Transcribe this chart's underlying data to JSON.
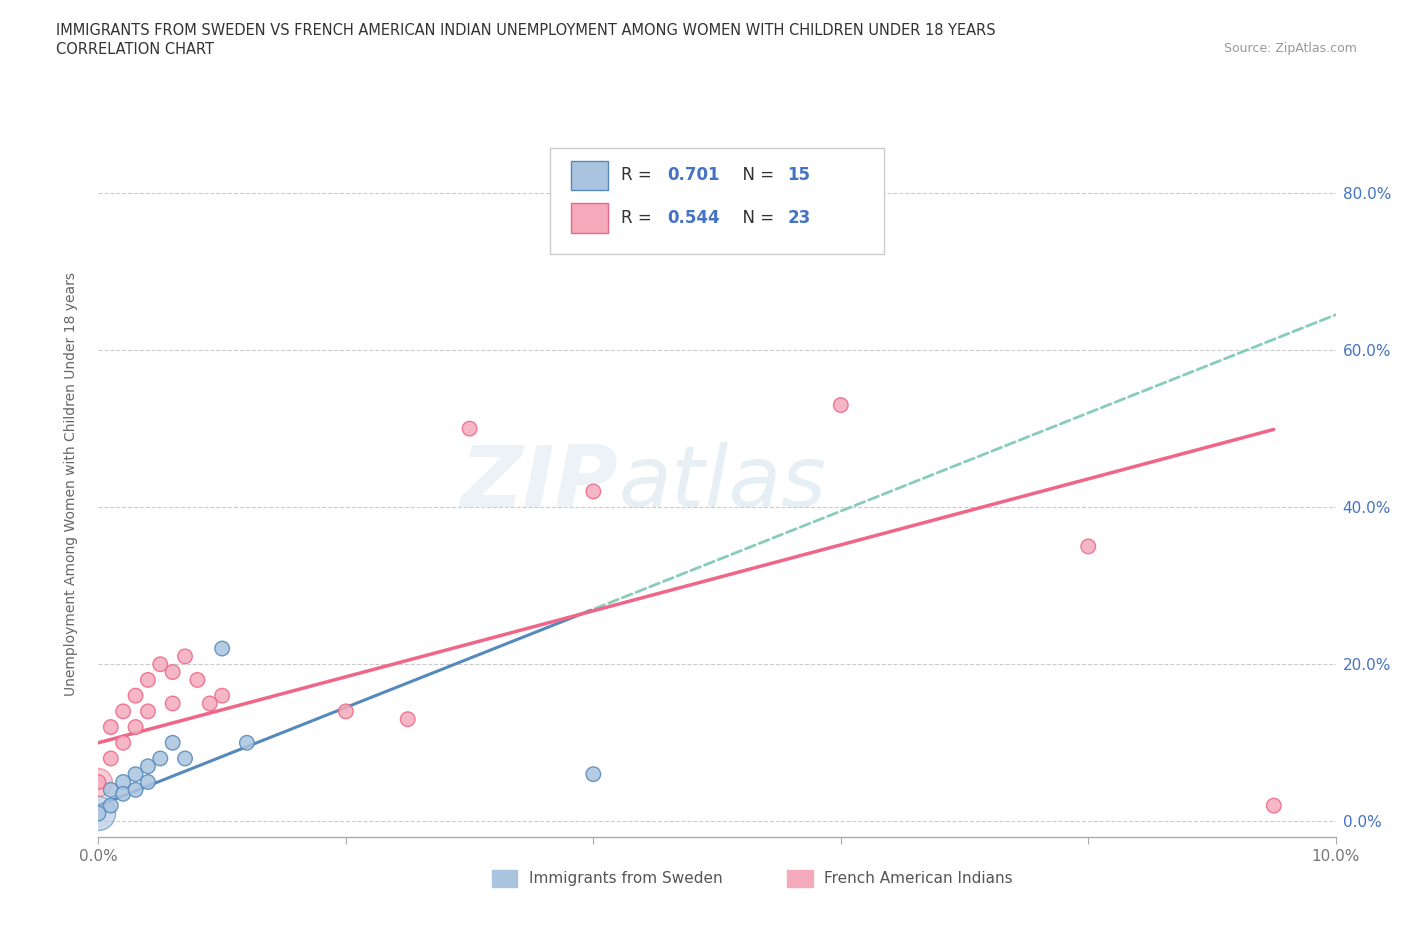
{
  "title_line1": "IMMIGRANTS FROM SWEDEN VS FRENCH AMERICAN INDIAN UNEMPLOYMENT AMONG WOMEN WITH CHILDREN UNDER 18 YEARS",
  "title_line2": "CORRELATION CHART",
  "source": "Source: ZipAtlas.com",
  "ylabel": "Unemployment Among Women with Children Under 18 years",
  "xlim": [
    0.0,
    0.1
  ],
  "ylim": [
    -0.02,
    0.88
  ],
  "xticks": [
    0.0,
    0.02,
    0.04,
    0.06,
    0.08,
    0.1
  ],
  "yticks_vals": [
    0.0,
    0.2,
    0.4,
    0.6,
    0.8
  ],
  "ytick_labels_right": [
    "0.0%",
    "20.0%",
    "40.0%",
    "60.0%",
    "80.0%"
  ],
  "xtick_labels": [
    "0.0%",
    "",
    "",
    "",
    "",
    "10.0%"
  ],
  "background_color": "#ffffff",
  "watermark_zip": "ZIP",
  "watermark_atlas": "atlas",
  "legend_R1": "0.701",
  "legend_N1": "15",
  "legend_R2": "0.544",
  "legend_N2": "23",
  "color_sweden": "#aac4df",
  "color_french": "#f4aabb",
  "color_line_sweden": "#5588bb",
  "color_line_french": "#ee6688",
  "color_text_blue": "#4472c4",
  "color_trendline_dash": "#88ccbb",
  "sweden_x": [
    0.001,
    0.001,
    0.002,
    0.002,
    0.003,
    0.003,
    0.004,
    0.004,
    0.005,
    0.006,
    0.007,
    0.01,
    0.012,
    0.04,
    0.0
  ],
  "sweden_y": [
    0.02,
    0.04,
    0.05,
    0.035,
    0.06,
    0.04,
    0.07,
    0.05,
    0.08,
    0.1,
    0.08,
    0.22,
    0.1,
    0.06,
    0.01
  ],
  "french_x": [
    0.0,
    0.001,
    0.001,
    0.002,
    0.002,
    0.003,
    0.003,
    0.004,
    0.004,
    0.005,
    0.006,
    0.006,
    0.007,
    0.008,
    0.009,
    0.01,
    0.02,
    0.025,
    0.03,
    0.04,
    0.06,
    0.08,
    0.095
  ],
  "french_y": [
    0.05,
    0.08,
    0.12,
    0.1,
    0.14,
    0.12,
    0.16,
    0.14,
    0.18,
    0.2,
    0.15,
    0.19,
    0.21,
    0.18,
    0.15,
    0.16,
    0.14,
    0.13,
    0.5,
    0.42,
    0.53,
    0.35,
    0.02
  ],
  "sweden_trendline": [
    0.003,
    0.4
  ],
  "french_trendline_intercept": 0.08,
  "french_trendline_slope": 4.5,
  "sweden_trendline_intercept": -0.01,
  "sweden_trendline_slope": 4.8
}
